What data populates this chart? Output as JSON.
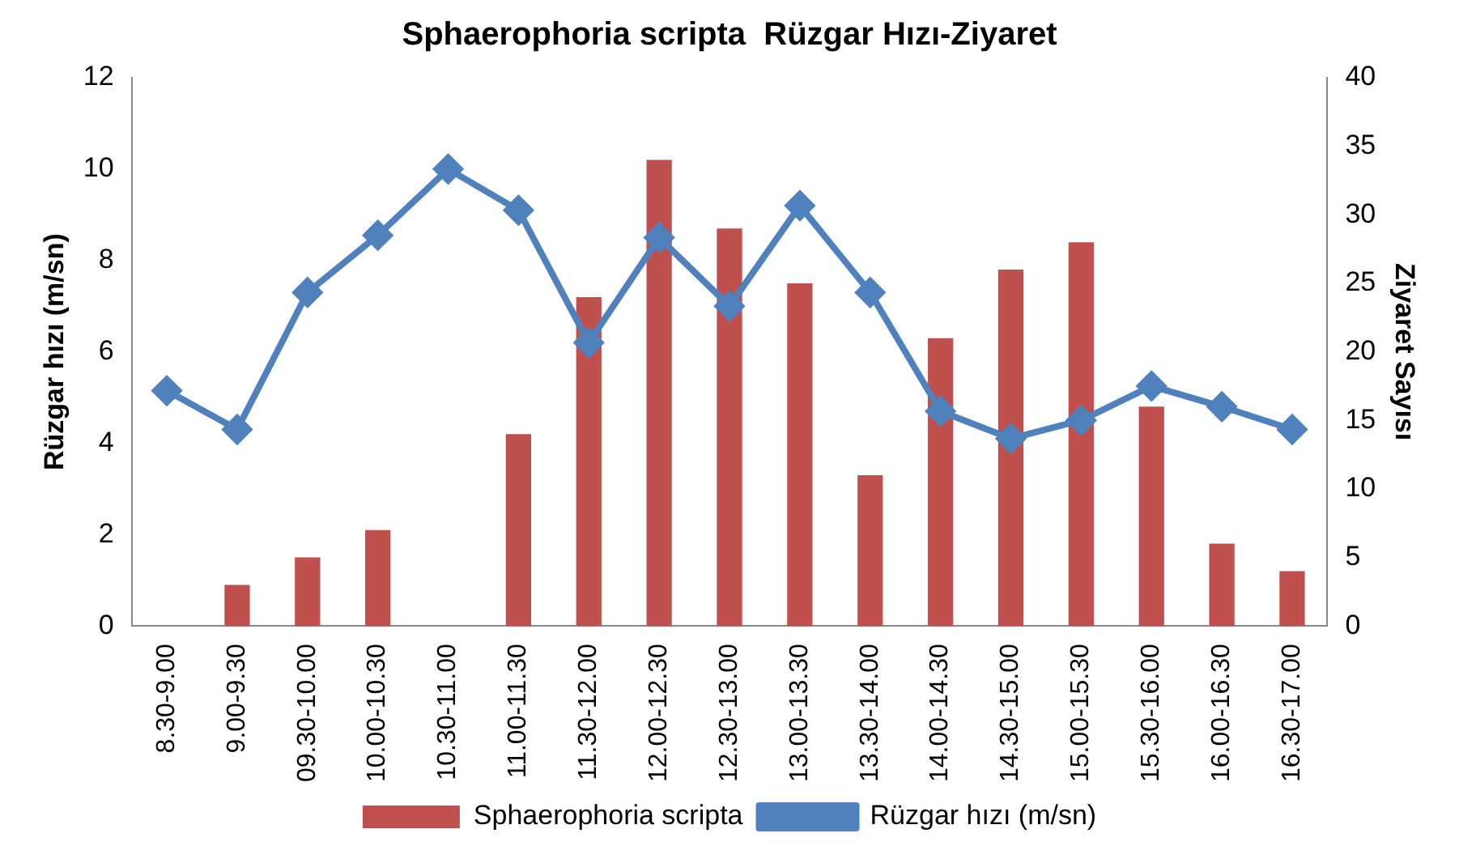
{
  "chart_data": {
    "type": "bar",
    "title": "Sphaerophoria scripta  Rüzgar Hızı-Ziyaret",
    "ylabel": "Rüzgar hızı (m/sn)",
    "y2label": "Ziyaret Sayısı",
    "categories": [
      "8.30-9.00",
      "9.00-9.30",
      "09.30-10.00",
      "10.00-10.30",
      "10.30-11.00",
      "11.00-11.30",
      "11.30-12.00",
      "12.00-12.30",
      "12.30-13.00",
      "13.00-13.30",
      "13.30-14.00",
      "14.00-14.30",
      "14.30-15.00",
      "15.00-15.30",
      "15.30-16.00",
      "16.00-16.30",
      "16.30-17.00"
    ],
    "series": [
      {
        "name": "Sphaerophoria scripta",
        "axis": "y2",
        "color": "#c0504d",
        "values": [
          0,
          3,
          5,
          7,
          0,
          14,
          24,
          34,
          29,
          25,
          11,
          21,
          26,
          28,
          16,
          6,
          4
        ]
      },
      {
        "name": "Rüzgar hızı (m/sn)",
        "type": "line",
        "axis": "y",
        "color": "#4f81bd",
        "marker": "diamond",
        "values": [
          5.15,
          4.3,
          7.3,
          8.55,
          10.0,
          9.1,
          6.2,
          8.5,
          7.0,
          9.2,
          7.3,
          4.7,
          4.1,
          4.5,
          5.25,
          4.8,
          4.3
        ]
      }
    ],
    "ylim": [
      0,
      12
    ],
    "yticks": [
      0,
      2,
      4,
      6,
      8,
      10,
      12
    ],
    "y2lim": [
      0,
      40
    ],
    "y2ticks": [
      0,
      5,
      10,
      15,
      20,
      25,
      30,
      35,
      40
    ],
    "grid": false,
    "legend": "bottom"
  }
}
